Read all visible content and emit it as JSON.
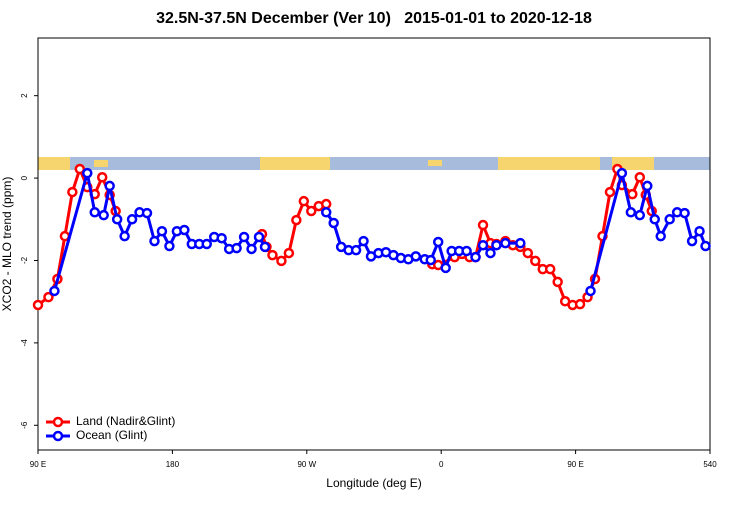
{
  "chart_data": {
    "type": "line",
    "title": "32.5N-37.5N December (Ver 10)   2015-01-01 to 2020-12-18",
    "xlabel": "Longitude (deg E)",
    "ylabel": "XCO2 - MLO trend (ppm)",
    "xlim": [
      90,
      540
    ],
    "ylim": [
      -6.6,
      3.4
    ],
    "xticks": [
      {
        "value": 90,
        "label": "90 E"
      },
      180,
      {
        "value": 270,
        "label": "90 W"
      },
      {
        "value": 360,
        "label": "0"
      },
      {
        "value": 450,
        "label": "90 E"
      },
      540
    ],
    "yticks": [
      -6,
      -4,
      -2,
      0,
      2
    ],
    "legend": "bottom-left",
    "series": [
      {
        "name": "Land (Nadir&Glint)",
        "color": "#ff0000",
        "x": [
          90,
          97,
          103,
          108,
          113,
          118,
          123,
          128,
          133,
          138,
          142,
          190,
          240,
          243,
          247,
          253,
          258,
          263,
          268,
          273,
          278,
          283,
          320,
          354,
          358,
          369,
          374,
          379,
          383,
          388,
          393,
          397,
          403,
          408,
          413,
          418,
          423,
          428,
          433,
          438,
          443,
          448,
          453,
          458,
          463,
          468,
          473,
          478,
          481,
          488,
          493,
          497,
          501
        ],
        "values": [
          -3.08,
          -2.89,
          -2.45,
          -1.41,
          -0.34,
          0.22,
          -0.22,
          -0.39,
          0.02,
          -0.41,
          -0.8,
          null,
          -1.36,
          -1.67,
          -1.87,
          -2.01,
          -1.82,
          -1.02,
          -0.56,
          -0.8,
          -0.68,
          -0.63,
          null,
          -2.09,
          -2.11,
          -1.92,
          -1.84,
          -1.92,
          -1.92,
          -1.14,
          -1.58,
          -1.6,
          -1.53,
          -1.63,
          -1.67,
          -1.82,
          -2.01,
          -2.21,
          -2.21,
          -2.52,
          -2.99,
          -3.08,
          -3.06,
          -2.89,
          -2.45,
          -1.41,
          -0.34,
          0.22,
          -0.17,
          -0.39,
          0.02,
          -0.41,
          -0.8
        ]
      },
      {
        "name": "Ocean (Glint)",
        "color": "#0000ff",
        "x": [
          101,
          123,
          128,
          134,
          138,
          143,
          148,
          153,
          158,
          163,
          168,
          173,
          178,
          183,
          188,
          193,
          198,
          203,
          208,
          213,
          218,
          223,
          228,
          233,
          238,
          242,
          262,
          283,
          288,
          293,
          298,
          303,
          308,
          313,
          318,
          323,
          328,
          333,
          338,
          343,
          349,
          353,
          358,
          363,
          367,
          372,
          377,
          383,
          388,
          393,
          397,
          403,
          413,
          436,
          460,
          481,
          487,
          493,
          498,
          503,
          507,
          513,
          518,
          523,
          528,
          533,
          537
        ],
        "values": [
          -2.74,
          0.12,
          -0.83,
          -0.9,
          -0.19,
          -1.0,
          -1.41,
          -1.0,
          -0.83,
          -0.85,
          -1.53,
          -1.29,
          -1.65,
          -1.29,
          -1.26,
          -1.6,
          -1.6,
          -1.6,
          -1.43,
          -1.46,
          -1.72,
          -1.7,
          -1.43,
          -1.72,
          -1.43,
          -1.67,
          null,
          -0.83,
          -1.09,
          -1.67,
          -1.75,
          -1.75,
          -1.53,
          -1.9,
          -1.82,
          -1.8,
          -1.87,
          -1.94,
          -1.97,
          -1.9,
          -1.97,
          -1.99,
          -1.55,
          -2.18,
          -1.77,
          -1.77,
          -1.77,
          -1.92,
          -1.63,
          -1.82,
          -1.63,
          -1.58,
          -1.58,
          null,
          -2.74,
          0.12,
          -0.83,
          -0.9,
          -0.19,
          -1.0,
          -1.41,
          -1.0,
          -0.83,
          -0.85,
          -1.53,
          -1.29,
          -1.65
        ]
      }
    ]
  }
}
